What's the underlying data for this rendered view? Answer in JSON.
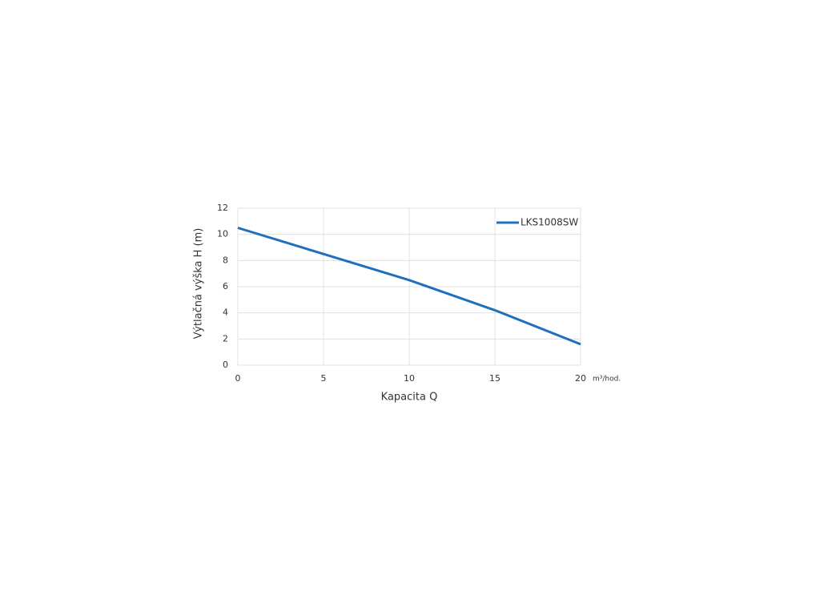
{
  "chart_data": {
    "type": "line",
    "x_label": "Kapacita Q",
    "y_label": "Výtlačná výška H (m)",
    "x_unit": "m³/hod.",
    "x": [
      0,
      5,
      10,
      15,
      20
    ],
    "series": [
      {
        "name": "LKS1008SW",
        "color": "#1f6fbf",
        "values": [
          10.5,
          8.5,
          6.5,
          4.2,
          1.6
        ]
      }
    ],
    "xlim": [
      0,
      20
    ],
    "xticks": [
      0,
      5,
      10,
      15,
      20
    ],
    "ylim": [
      0,
      12
    ],
    "yticks": [
      0,
      2,
      4,
      6,
      8,
      10,
      12
    ],
    "grid": true,
    "legend": "top-right"
  }
}
